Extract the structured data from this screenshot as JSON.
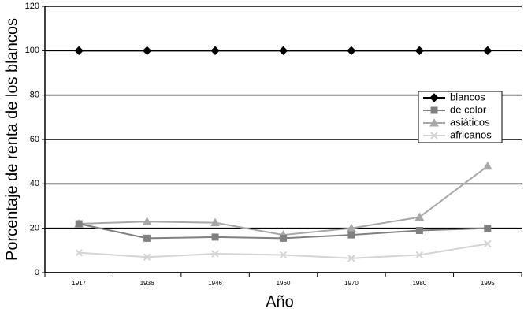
{
  "chart_data": {
    "type": "line",
    "x_label": "Año",
    "y_label": "Porcentaje de renta de los blancos",
    "categories": [
      "1917",
      "1936",
      "1946",
      "1960",
      "1970",
      "1980",
      "1995"
    ],
    "series": [
      {
        "name": "blancos",
        "color": "#000000",
        "marker": "diamond",
        "values": [
          100,
          100,
          100,
          100,
          100,
          100,
          100
        ]
      },
      {
        "name": "de color",
        "color": "#808080",
        "marker": "square",
        "values": [
          22,
          15.5,
          16,
          15.5,
          17,
          19,
          20
        ]
      },
      {
        "name": "asiáticos",
        "color": "#a8a8a8",
        "marker": "triangle",
        "values": [
          22,
          23,
          22.5,
          17,
          20,
          25,
          48
        ]
      },
      {
        "name": "africanos",
        "color": "#d4d4d4",
        "marker": "x",
        "values": [
          9,
          7,
          8.5,
          8,
          6.5,
          8,
          13
        ]
      }
    ],
    "ylim": [
      0,
      120
    ],
    "yticks": [
      0,
      20,
      40,
      60,
      80,
      100,
      120
    ],
    "grid": true,
    "legend": "right"
  }
}
